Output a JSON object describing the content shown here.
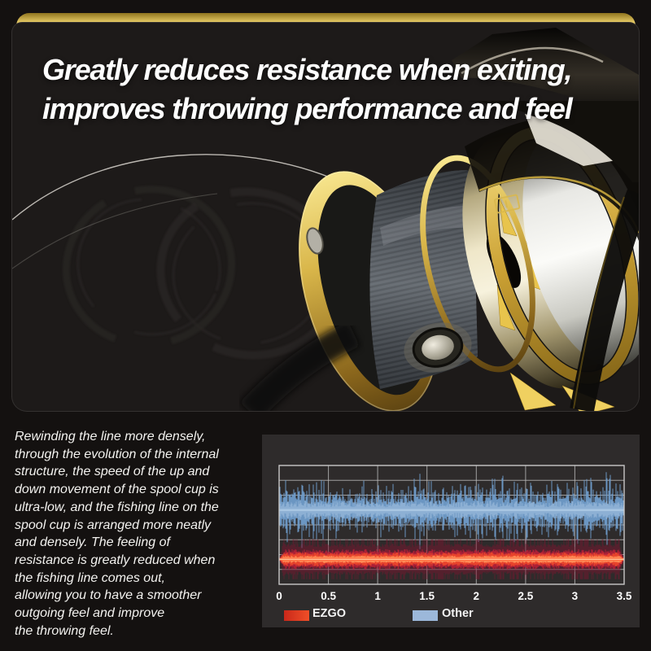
{
  "page": {
    "background": "#141110"
  },
  "hero": {
    "headline": "Greatly reduces resistance when exiting,\nimproves throwing performance and feel",
    "accent_gold": "#d9b84e",
    "card_background": "#1d1a19"
  },
  "description": {
    "text": "Rewinding the line more densely,\nthrough the evolution of the internal\nstructure, the speed of the up and\ndown movement of the spool cup is\nultra-low, and the fishing line on the\nspool cup is arranged more neatly\nand densely. The feeling of\nresistance is greatly reduced when\nthe fishing line comes out,\nallowing you to have a smoother\noutgoing feel and improve\nthe throwing feel."
  },
  "chart_data": {
    "type": "waveform",
    "title": "",
    "xlabel": "",
    "ylabel": "",
    "x_ticks": [
      "0",
      "0.5",
      "1",
      "1.5",
      "2",
      "2.5",
      "3",
      "3.5"
    ],
    "xlim": [
      0,
      3.5
    ],
    "panel_background": "#2e2b2b",
    "grid": {
      "rows": 8,
      "line_color": "#bdbdbd",
      "border_color": "#c8c8c8"
    },
    "series": [
      {
        "name": "Other",
        "style": "noise",
        "color": "#6f9cca",
        "core_color": "#aac7e4",
        "center_frac": 0.375,
        "base_amp_frac": 0.1,
        "peak_amp_frac": 0.36,
        "seed": 11
      },
      {
        "name": "EZGO",
        "style": "glow",
        "color": "#e8432c",
        "core_color": "#ff8a55",
        "glow_color": "#7c1630",
        "mid_color": "#c22038",
        "center_frac": 0.79,
        "base_amp_frac": 0.05,
        "peak_amp_frac": 0.12,
        "seed": 5
      }
    ],
    "legend": [
      {
        "label": "EZGO",
        "colors": [
          "#c9281a",
          "#f04f28"
        ]
      },
      {
        "label": "Other",
        "colors": [
          "#9cb8da",
          "#9cb8da"
        ]
      }
    ],
    "legend_position": "bottom"
  }
}
